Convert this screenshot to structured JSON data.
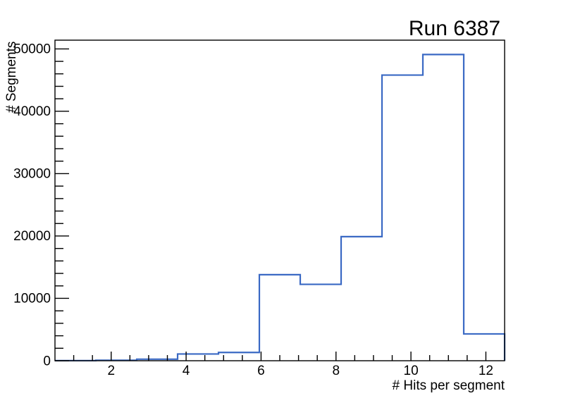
{
  "chart_data": {
    "type": "bar",
    "style": "step-histogram",
    "title": "Run 6387",
    "xlabel": "# Hits per segment",
    "ylabel": "# Segments",
    "xlim": [
      0.5,
      12.5
    ],
    "ylim": [
      0,
      51400
    ],
    "n_bins": 11,
    "bin_edges": [
      0.5,
      1.5909,
      2.6818,
      3.7727,
      4.8636,
      5.9545,
      7.0455,
      8.1364,
      9.2273,
      10.3182,
      11.4091,
      12.5
    ],
    "values": [
      20,
      70,
      250,
      1080,
      1330,
      13800,
      12250,
      19900,
      45800,
      49100,
      4300
    ],
    "x_major_ticks": [
      2,
      4,
      6,
      8,
      10,
      12
    ],
    "x_major_tick_labels": [
      "2",
      "4",
      "6",
      "8",
      "10",
      "12"
    ],
    "x_minor_tick_step": 0.5,
    "y_major_ticks": [
      0,
      10000,
      20000,
      30000,
      40000,
      50000
    ],
    "y_major_tick_labels": [
      "0",
      "10000",
      "20000",
      "30000",
      "40000",
      "50000"
    ],
    "y_minor_tick_step": 2000,
    "grid": "off",
    "legend": "none",
    "line_color": "#3a69c4",
    "axis_color": "#000000",
    "background_color": "#ffffff"
  }
}
